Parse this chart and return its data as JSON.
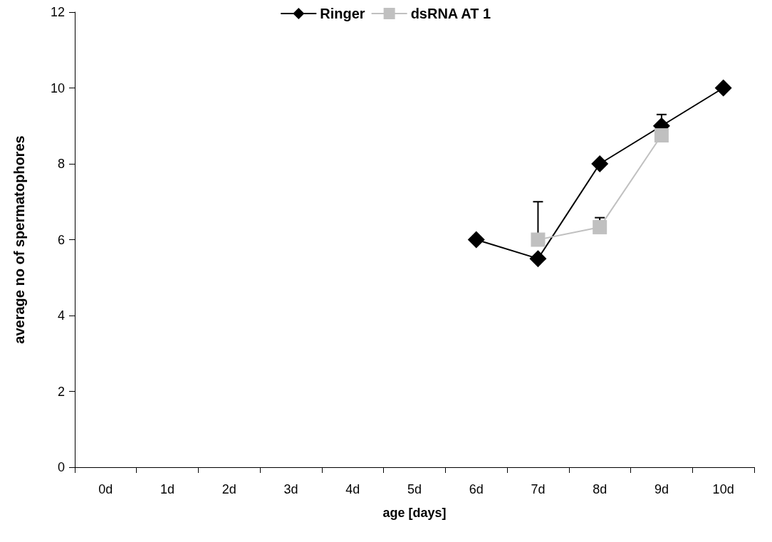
{
  "chart_data": {
    "type": "line",
    "xlabel": "age [days]",
    "ylabel": "average no of spermatophores",
    "categories": [
      "0d",
      "1d",
      "2d",
      "3d",
      "4d",
      "5d",
      "6d",
      "7d",
      "8d",
      "9d",
      "10d"
    ],
    "ylim": [
      0,
      12
    ],
    "yticks": [
      0,
      2,
      4,
      6,
      8,
      10,
      12
    ],
    "grid": false,
    "legend": "top",
    "series": [
      {
        "name": "Ringer",
        "color": "#000000",
        "marker": "diamond",
        "values": [
          null,
          null,
          null,
          null,
          null,
          null,
          6,
          5.5,
          8,
          9,
          10
        ],
        "errors": [
          null,
          null,
          null,
          null,
          null,
          null,
          null,
          null,
          null,
          [
            9,
            9.3
          ],
          null
        ]
      },
      {
        "name": "dsRNA AT 1",
        "color": "#c0c0c0",
        "marker": "square",
        "values": [
          null,
          null,
          null,
          null,
          null,
          null,
          null,
          6,
          6.33,
          8.75,
          null
        ],
        "errors": [
          null,
          null,
          null,
          null,
          null,
          null,
          null,
          [
            6,
            7
          ],
          [
            6.33,
            6.58
          ],
          null,
          null
        ]
      }
    ]
  }
}
